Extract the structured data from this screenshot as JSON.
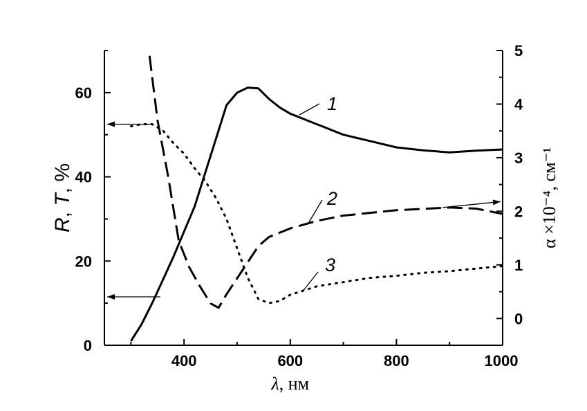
{
  "chart_data": {
    "type": "line",
    "xlabel": "λ, нм",
    "ylabel_left": "R, T, %",
    "ylabel_right": "α ×10⁻⁴, см⁻¹",
    "xlim": [
      250,
      1000
    ],
    "ylim_left": [
      0,
      70
    ],
    "ylim_right": [
      -0.5,
      5
    ],
    "x_ticks": [
      400,
      600,
      800,
      1000
    ],
    "y_ticks_left": [
      0,
      20,
      40,
      60
    ],
    "y_ticks_right": [
      0,
      1,
      2,
      3,
      4,
      5
    ],
    "grid": false,
    "series": [
      {
        "name": "1",
        "axis": "left",
        "style": "solid",
        "x": [
          300,
          320,
          340,
          360,
          380,
          400,
          420,
          440,
          460,
          480,
          500,
          520,
          540,
          560,
          580,
          600,
          620,
          640,
          660,
          680,
          700,
          750,
          800,
          850,
          900,
          950,
          1000
        ],
        "values": [
          1,
          5,
          10,
          15.5,
          21,
          27,
          33,
          41,
          49,
          57,
          60,
          61.2,
          61,
          58.5,
          56.5,
          55,
          54,
          53,
          52,
          51,
          50,
          48.5,
          47,
          46.3,
          45.8,
          46.2,
          46.5
        ]
      },
      {
        "name": "2",
        "axis": "right",
        "style": "dashed",
        "x": [
          335,
          350,
          370,
          390,
          410,
          430,
          450,
          465,
          480,
          500,
          520,
          540,
          560,
          600,
          650,
          700,
          800,
          900,
          950,
          1000
        ],
        "values": [
          4.9,
          3.7,
          2.65,
          1.45,
          0.95,
          0.6,
          0.28,
          0.2,
          0.45,
          0.75,
          1.05,
          1.35,
          1.52,
          1.68,
          1.82,
          1.92,
          2.02,
          2.07,
          2.05,
          1.95
        ]
      },
      {
        "name": "3",
        "axis": "left",
        "style": "dotted",
        "x": [
          300,
          320,
          340,
          360,
          380,
          400,
          420,
          440,
          460,
          480,
          500,
          520,
          540,
          560,
          580,
          600,
          650,
          700,
          750,
          800,
          850,
          900,
          950,
          1000
        ],
        "values": [
          52,
          52.5,
          52.5,
          51,
          48,
          45.5,
          42,
          39,
          35,
          30,
          23,
          16,
          11,
          10,
          10.5,
          12,
          14,
          15,
          16,
          16.5,
          17.2,
          17.6,
          18.2,
          18.8
        ]
      }
    ],
    "annotations": [
      {
        "text": "1",
        "series": "1",
        "arrow": "none"
      },
      {
        "text": "2",
        "series": "2",
        "arrow": "right"
      },
      {
        "text": "3",
        "series": "3",
        "arrow": "none"
      },
      {
        "text": "",
        "series": "1",
        "arrow": "left"
      },
      {
        "text": "",
        "series": "3",
        "arrow": "left"
      }
    ]
  }
}
